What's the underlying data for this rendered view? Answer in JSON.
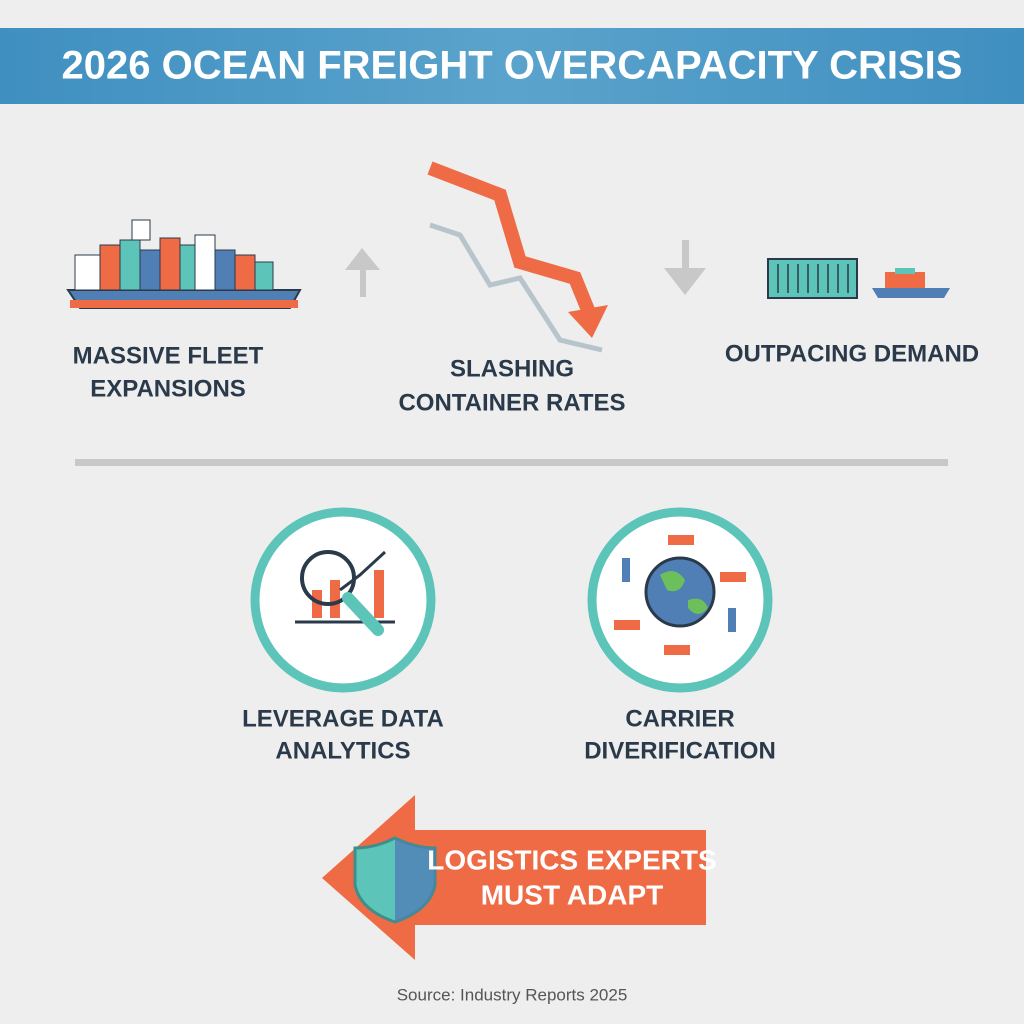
{
  "header": {
    "title": "2026 OCEAN FREIGHT OVERCAPACITY CRISIS"
  },
  "causes": [
    {
      "lines": [
        "MASSIVE FLEET",
        "EXPANSIONS"
      ]
    },
    {
      "lines": [
        "SLASHING",
        "CONTAINER RATES"
      ]
    },
    {
      "lines": [
        "OUTPACING DEMAND"
      ]
    }
  ],
  "strategies": [
    {
      "lines": [
        "LEVERAGE DATA",
        "ANALYTICS"
      ]
    },
    {
      "lines": [
        "CARRIER",
        "DIVERIFICATION"
      ]
    }
  ],
  "callout": {
    "lines": [
      "LOGISTICS EXPERTS",
      "MUST ADAPT"
    ]
  },
  "footer": {
    "source": "Source: Industry Reports 2025"
  }
}
